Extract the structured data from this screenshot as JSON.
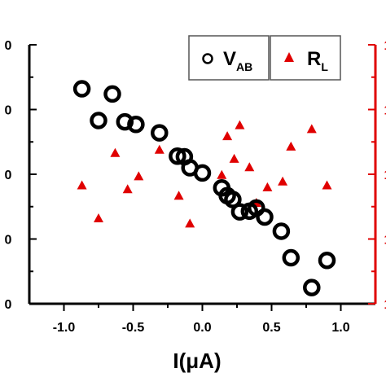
{
  "chart_data": {
    "type": "scatter",
    "title": "",
    "xlabel": "I(μA)",
    "xlim": [
      -1.25,
      1.25
    ],
    "x_ticks": [
      "-1.0",
      "-0.5",
      "0.0",
      "0.5",
      "1.0"
    ],
    "left_y_tick_labels": [
      "0",
      "0",
      "0",
      "0",
      "0"
    ],
    "right_y_tick_labels": [
      "1",
      "1",
      "1",
      "1",
      "1"
    ],
    "legend": {
      "placement": "top-right",
      "v_ab": {
        "main": "V",
        "sub": "AB",
        "color": "#000000",
        "marker": "open-circle"
      },
      "r_l": {
        "main": "R",
        "sub": "L",
        "color": "#e00000",
        "marker": "triangle"
      }
    },
    "series": [
      {
        "name": "VAB",
        "axis": "left",
        "ylim": [
          0,
          4
        ],
        "points": [
          {
            "x": -0.87,
            "y": 3.32
          },
          {
            "x": -0.75,
            "y": 2.83
          },
          {
            "x": -0.65,
            "y": 3.24
          },
          {
            "x": -0.56,
            "y": 2.81
          },
          {
            "x": -0.48,
            "y": 2.77
          },
          {
            "x": -0.31,
            "y": 2.64
          },
          {
            "x": -0.18,
            "y": 2.28
          },
          {
            "x": -0.13,
            "y": 2.27
          },
          {
            "x": -0.09,
            "y": 2.1
          },
          {
            "x": 0.0,
            "y": 2.02
          },
          {
            "x": 0.14,
            "y": 1.79
          },
          {
            "x": 0.18,
            "y": 1.67
          },
          {
            "x": 0.22,
            "y": 1.61
          },
          {
            "x": 0.27,
            "y": 1.42
          },
          {
            "x": 0.34,
            "y": 1.43
          },
          {
            "x": 0.39,
            "y": 1.48
          },
          {
            "x": 0.45,
            "y": 1.34
          },
          {
            "x": 0.57,
            "y": 1.12
          },
          {
            "x": 0.64,
            "y": 0.71
          },
          {
            "x": 0.79,
            "y": 0.25
          },
          {
            "x": 0.9,
            "y": 0.67
          }
        ]
      },
      {
        "name": "RL",
        "axis": "right",
        "ylim": [
          0,
          4
        ],
        "points": [
          {
            "x": -0.87,
            "y": 1.83
          },
          {
            "x": -0.75,
            "y": 1.32
          },
          {
            "x": -0.63,
            "y": 2.33
          },
          {
            "x": -0.54,
            "y": 1.77
          },
          {
            "x": -0.46,
            "y": 1.97
          },
          {
            "x": -0.31,
            "y": 2.38
          },
          {
            "x": -0.17,
            "y": 1.67
          },
          {
            "x": -0.09,
            "y": 1.24
          },
          {
            "x": 0.14,
            "y": 1.99
          },
          {
            "x": 0.18,
            "y": 2.59
          },
          {
            "x": 0.23,
            "y": 2.24
          },
          {
            "x": 0.27,
            "y": 2.76
          },
          {
            "x": 0.34,
            "y": 2.11
          },
          {
            "x": 0.39,
            "y": 1.56
          },
          {
            "x": 0.47,
            "y": 1.8
          },
          {
            "x": 0.58,
            "y": 1.89
          },
          {
            "x": 0.64,
            "y": 2.43
          },
          {
            "x": 0.79,
            "y": 2.7
          },
          {
            "x": 0.9,
            "y": 1.83
          }
        ]
      }
    ]
  }
}
